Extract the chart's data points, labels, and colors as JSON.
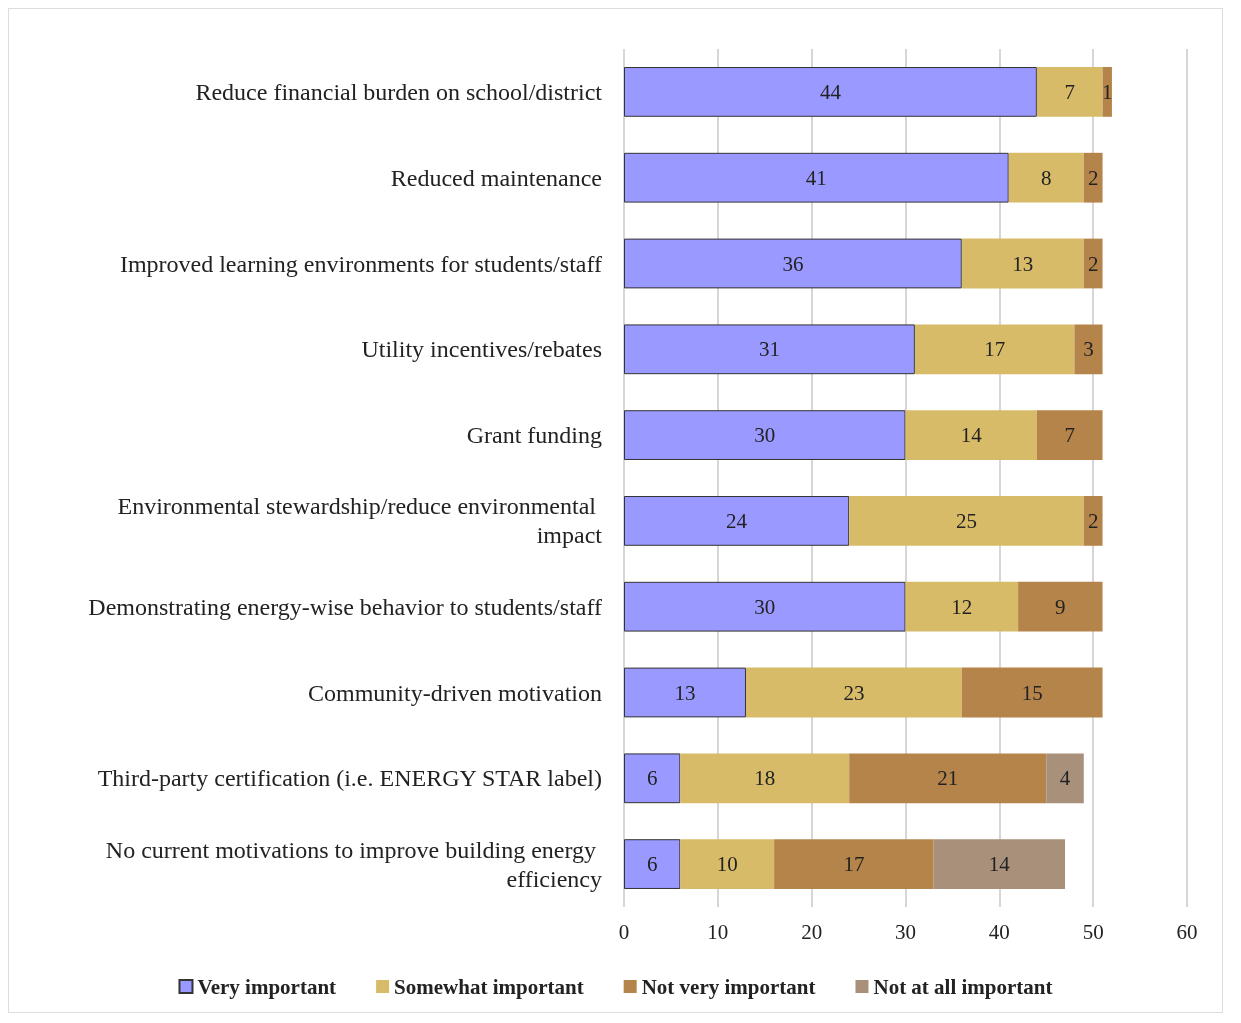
{
  "chart_data": {
    "type": "bar",
    "orientation": "horizontal",
    "stacked": true,
    "data_labels": true,
    "grid": "x",
    "legend": "bottom",
    "categories": [
      "Reduce financial burden on school/district",
      "Reduced maintenance",
      "Improved learning environments for students/staff",
      "Utility incentives/rebates",
      "Grant funding",
      "Environmental stewardship/reduce environmental impact",
      "Demonstrating energy-wise behavior to students/staff",
      "Community-driven motivation",
      "Third-party certification (i.e. ENERGY STAR label)",
      "No current motivations to improve building energy efficiency"
    ],
    "series": [
      {
        "name": "Very important",
        "color": "#9999ff",
        "values": [
          44,
          41,
          36,
          31,
          30,
          24,
          30,
          13,
          6,
          6
        ]
      },
      {
        "name": "Somewhat important",
        "color": "#d8bb68",
        "values": [
          7,
          8,
          13,
          17,
          14,
          25,
          12,
          23,
          18,
          10
        ]
      },
      {
        "name": "Not very important",
        "color": "#b5844a",
        "values": [
          1,
          2,
          2,
          3,
          7,
          2,
          9,
          15,
          21,
          17
        ]
      },
      {
        "name": "Not at all important",
        "color": "#a8907a",
        "values": [
          null,
          null,
          null,
          null,
          null,
          null,
          null,
          null,
          4,
          14
        ]
      }
    ],
    "xlim": [
      0,
      60
    ],
    "xticks": [
      0,
      10,
      20,
      30,
      40,
      50,
      60
    ]
  }
}
